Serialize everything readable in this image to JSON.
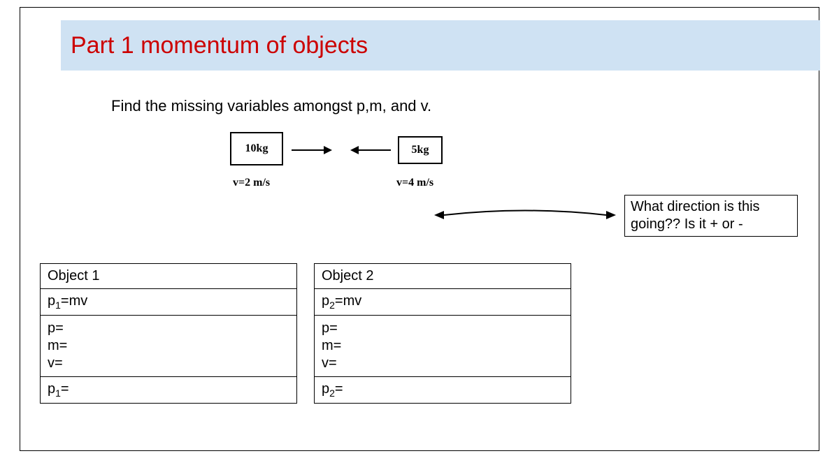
{
  "title": "Part 1 momentum of objects",
  "instruction": "Find the missing variables amongst p,m, and v.",
  "diagram": {
    "left_box_label": "10kg",
    "right_box_label": "5kg",
    "left_velocity": "v=2 m/s",
    "right_velocity": "v=4 m/s"
  },
  "question": {
    "line1": "What direction is this",
    "line2": "going?? Is it + or -"
  },
  "object1": {
    "header": "Object 1",
    "formula_html": "p<sub>1</sub>=mv",
    "p": "p=",
    "m": "m=",
    "v": "v=",
    "result_html": "p<sub>1</sub>="
  },
  "object2": {
    "header": "Object 2",
    "formula_html": "p<sub>2</sub>=mv",
    "p": "p=",
    "m": "m=",
    "v": "v=",
    "result_html": "p<sub>2</sub>="
  },
  "colors": {
    "title_bg": "#cfe2f3",
    "title_text": "#cc0000",
    "border": "#000000",
    "background": "#ffffff"
  }
}
